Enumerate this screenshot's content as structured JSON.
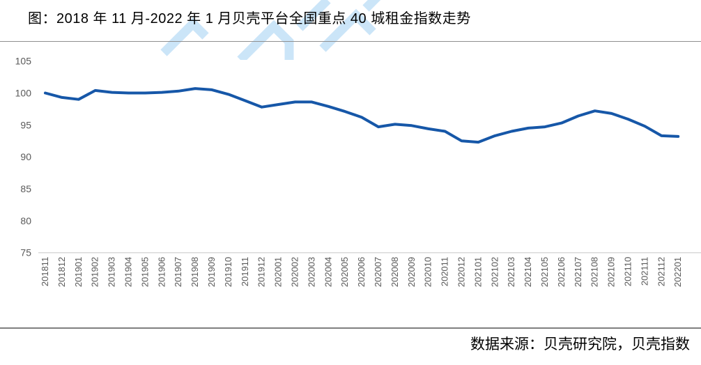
{
  "title": "图：2018 年 11 月-2022 年 1 月贝壳平台全国重点 40 城租金指数走势",
  "footer": {
    "source_label": "数据来源：贝壳研究院，贝壳指数"
  },
  "colors": {
    "line": "#1657A8",
    "axis_text": "#595959",
    "axis_line": "#d9d9d9",
    "divider": "#8f8f8f",
    "watermark": "#cbe5f8",
    "background": "#ffffff",
    "title_text": "#000000"
  },
  "chart_data": {
    "type": "line",
    "title": "图：2018 年 11 月-2022 年 1 月贝壳平台全国重点 40 城租金指数走势",
    "xlabel": "",
    "ylabel": "",
    "ylim": [
      75,
      105
    ],
    "yticks": [
      105,
      100,
      95,
      90,
      85,
      80,
      75
    ],
    "grid": false,
    "legend_position": "none",
    "categories": [
      "201811",
      "201812",
      "201901",
      "201902",
      "201903",
      "201904",
      "201905",
      "201906",
      "201907",
      "201908",
      "201909",
      "201910",
      "201911",
      "201912",
      "202001",
      "202002",
      "202003",
      "202004",
      "202005",
      "202006",
      "202007",
      "202008",
      "202009",
      "202010",
      "202011",
      "202012",
      "202101",
      "202102",
      "202103",
      "202104",
      "202105",
      "202106",
      "202107",
      "202108",
      "202109",
      "202110",
      "202111",
      "202112",
      "202201"
    ],
    "values": [
      100.0,
      99.3,
      99.0,
      100.4,
      100.1,
      100.0,
      100.0,
      100.1,
      100.3,
      100.7,
      100.5,
      99.8,
      98.8,
      97.8,
      98.2,
      98.6,
      98.6,
      97.9,
      97.1,
      96.2,
      94.7,
      95.1,
      94.9,
      94.4,
      94.0,
      92.5,
      92.3,
      93.3,
      94.0,
      94.5,
      94.7,
      95.3,
      96.4,
      97.2,
      96.8,
      95.9,
      94.8,
      93.3,
      93.2
    ]
  }
}
